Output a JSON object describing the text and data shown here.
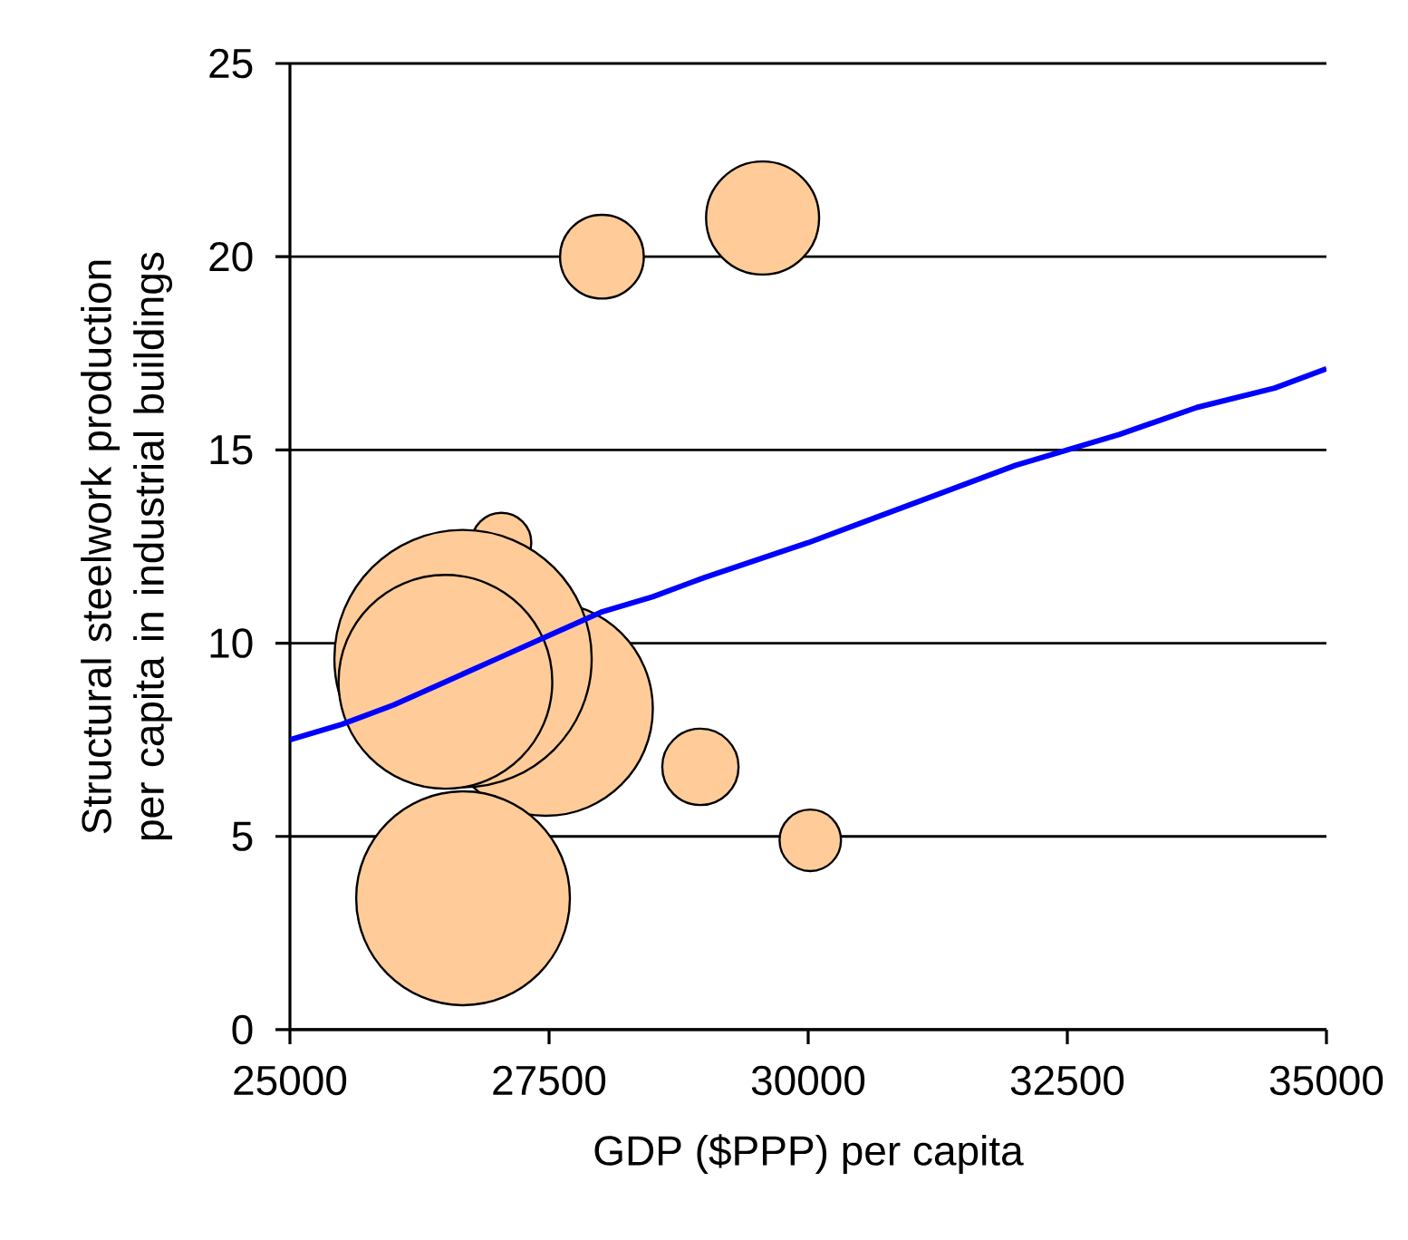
{
  "chart_data": {
    "type": "bubble",
    "xlabel": "GDP ($PPP) per capita",
    "ylabel": "Structural steelwork production per capita in industrial buildings",
    "xlim": [
      25000,
      35000
    ],
    "ylim": [
      0,
      25
    ],
    "xticks": [
      25000,
      27500,
      30000,
      32500,
      35000
    ],
    "yticks": [
      0,
      5,
      10,
      15,
      20,
      25
    ],
    "grid": "y",
    "series": [
      {
        "color": "#ffcc99",
        "x": [
          27040,
          27470,
          26670,
          26500,
          26670,
          28960,
          30020,
          28010,
          29560
        ],
        "values": [
          12.6,
          8.3,
          9.6,
          9.0,
          3.4,
          6.8,
          4.9,
          20.0,
          21.0
        ],
        "sizes": [
          0.054,
          0.69,
          1,
          0.69,
          0.69,
          0.088,
          0.057,
          0.106,
          0.193
        ]
      },
      {
        "type": "line",
        "color": "#0000ff",
        "x": [
          25000,
          25500,
          26000,
          26500,
          27000,
          27500,
          28000,
          28500,
          29000,
          30000,
          30600,
          31300,
          32000,
          32500,
          33000,
          33750,
          34500,
          35000
        ],
        "values": [
          7.5,
          7.9,
          8.4,
          9.0,
          9.6,
          10.2,
          10.8,
          11.2,
          11.7,
          12.6,
          13.2,
          13.9,
          14.6,
          15.0,
          15.4,
          16.1,
          16.6,
          17.1
        ]
      }
    ]
  }
}
